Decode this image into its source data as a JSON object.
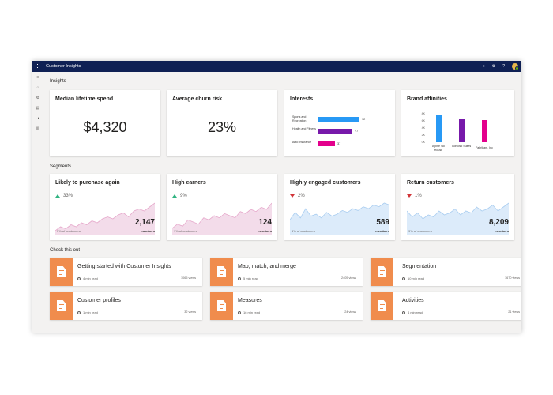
{
  "app": {
    "title": "Customer Insights"
  },
  "topbar": {
    "icons": [
      "bell-icon",
      "settings-icon",
      "help-icon",
      "avatar"
    ],
    "bell": "○",
    "settings": "⚙",
    "help": "?"
  },
  "leftnav": {
    "items": [
      "≡",
      "⌂",
      "⚙",
      "▤",
      "◑",
      "▥"
    ]
  },
  "sections": {
    "insights": "Insights",
    "segments": "Segments",
    "check": "Check this out"
  },
  "insights": {
    "lifetime": {
      "title": "Median lifetime spend",
      "value": "$4,320"
    },
    "churn": {
      "title": "Average churn risk",
      "value": "23%"
    },
    "interests": {
      "title": "Interests",
      "bars": [
        {
          "label": "Sports and Recreation",
          "value": "92",
          "color": "#2899f5"
        },
        {
          "label": "Health and Fitness",
          "value": "77",
          "color": "#7719aa"
        },
        {
          "label": "Auto Insurance",
          "value": "37",
          "color": "#e3008c"
        }
      ]
    },
    "brands": {
      "title": "Brand affinities",
      "ticks": [
        "8K",
        "6K",
        "4K",
        "2K",
        "0K"
      ],
      "bars": [
        {
          "label": "Alpine Ski House",
          "value": 7.7,
          "color": "#2899f5"
        },
        {
          "label": "Contoso Suites",
          "value": 6.6,
          "color": "#7719aa"
        },
        {
          "label": "Fabrikam, Inc",
          "value": 6.4,
          "color": "#e3008c"
        }
      ]
    }
  },
  "segments": [
    {
      "title": "Likely to purchase again",
      "change": "33%",
      "direction": "up",
      "count": "2,147",
      "members": "members",
      "pct": "3% of customers",
      "fill": "#f3dcea",
      "stroke": "#e6a8cb",
      "trend": [
        2,
        4,
        3,
        5,
        4,
        6,
        5,
        7,
        6,
        8,
        9,
        8,
        10,
        11,
        9,
        12,
        13,
        12,
        14,
        16
      ]
    },
    {
      "title": "High earners",
      "change": "9%",
      "direction": "up",
      "count": "124",
      "members": "members",
      "pct": "1% of customers",
      "fill": "#f3dcea",
      "stroke": "#e6a8cb",
      "trend": [
        3,
        5,
        4,
        7,
        6,
        5,
        8,
        7,
        9,
        8,
        10,
        9,
        8,
        11,
        10,
        12,
        11,
        13,
        12,
        15
      ]
    },
    {
      "title": "Highly engaged customers",
      "change": "2%",
      "direction": "down",
      "count": "589",
      "members": "members",
      "pct": "5% of customers",
      "fill": "#dcebfa",
      "stroke": "#a9cdf0",
      "trend": [
        8,
        12,
        9,
        14,
        10,
        11,
        9,
        12,
        10,
        11,
        13,
        12,
        14,
        13,
        15,
        14,
        16,
        15,
        17,
        16
      ]
    },
    {
      "title": "Return customers",
      "change": "1%",
      "direction": "down",
      "count": "8,209",
      "members": "members",
      "pct": "9% of customers",
      "fill": "#dcebfa",
      "stroke": "#a9cdf0",
      "trend": [
        12,
        9,
        11,
        8,
        10,
        9,
        12,
        10,
        11,
        13,
        10,
        12,
        11,
        14,
        12,
        13,
        15,
        12,
        14,
        16
      ]
    }
  ],
  "docs": [
    {
      "title": "Getting started with Customer Insights",
      "read": "4 min read",
      "views": "1065 views"
    },
    {
      "title": "Map, match, and merge",
      "read": "5 min read",
      "views": "2405 views"
    },
    {
      "title": "Segmentation",
      "read": "10 min read",
      "views": "1670 views"
    },
    {
      "title": "Customer profiles",
      "read": "1 min read",
      "views": "32 views"
    },
    {
      "title": "Measures",
      "read": "16 min read",
      "views": "24 views"
    },
    {
      "title": "Activities",
      "read": "4 min read",
      "views": "21 views"
    }
  ]
}
